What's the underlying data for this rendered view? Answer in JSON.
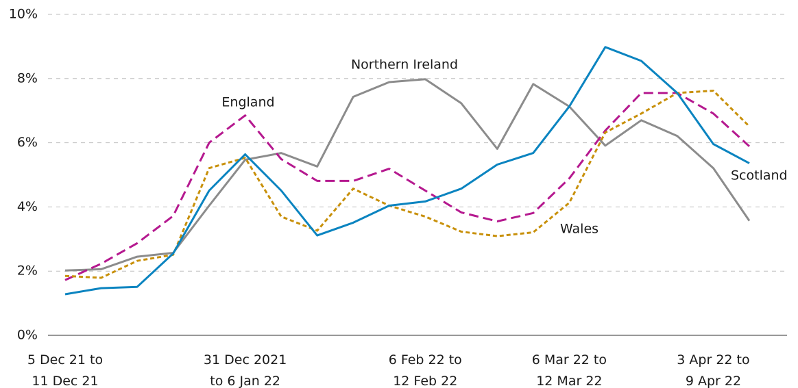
{
  "chart_data": {
    "type": "line",
    "categories": [
      "5 Dec 21 to\n11 Dec 21",
      null,
      null,
      null,
      null,
      "31 Dec 2021\nto 6 Jan 22",
      null,
      null,
      null,
      null,
      "6 Feb 22 to\n12 Feb 22",
      null,
      null,
      null,
      "6 Mar 22 to\n12 Mar 22",
      null,
      null,
      null,
      "3 Apr 22 to\n9 Apr 22",
      null
    ],
    "series": [
      {
        "name": "Northern Ireland",
        "color": "#8c8c8c",
        "style": "solid",
        "values": [
          2.02,
          2.06,
          2.45,
          2.57,
          4.04,
          5.47,
          5.68,
          5.26,
          7.43,
          7.89,
          7.98,
          7.23,
          5.81,
          7.83,
          7.13,
          5.91,
          6.7,
          6.21,
          5.21,
          3.57
        ]
      },
      {
        "name": "England",
        "color": "#b5198f",
        "style": "dashed",
        "values": [
          1.72,
          2.23,
          2.87,
          3.72,
          6.0,
          6.85,
          5.49,
          4.81,
          4.81,
          5.19,
          4.51,
          3.83,
          3.55,
          3.81,
          4.89,
          6.38,
          7.55,
          7.55,
          6.91,
          5.89
        ]
      },
      {
        "name": "Wales",
        "color": "#c8900a",
        "style": "dotted",
        "values": [
          1.85,
          1.79,
          2.32,
          2.51,
          5.21,
          5.53,
          3.7,
          3.26,
          4.57,
          4.04,
          3.7,
          3.23,
          3.09,
          3.21,
          4.13,
          6.32,
          6.91,
          7.55,
          7.62,
          6.51
        ]
      },
      {
        "name": "Scotland",
        "color": "#0b84c0",
        "style": "solid",
        "values": [
          1.28,
          1.47,
          1.51,
          2.55,
          4.51,
          5.64,
          4.51,
          3.11,
          3.51,
          4.04,
          4.17,
          4.57,
          5.32,
          5.68,
          7.13,
          8.98,
          8.55,
          7.55,
          5.96,
          5.36
        ]
      }
    ],
    "ylim": [
      0,
      10
    ],
    "yticks": [
      {
        "value": 0,
        "label": "0%"
      },
      {
        "value": 2,
        "label": "2%"
      },
      {
        "value": 4,
        "label": "4%"
      },
      {
        "value": 6,
        "label": "6%"
      },
      {
        "value": 8,
        "label": "8%"
      },
      {
        "value": 10,
        "label": "10%"
      }
    ],
    "grid": true
  }
}
